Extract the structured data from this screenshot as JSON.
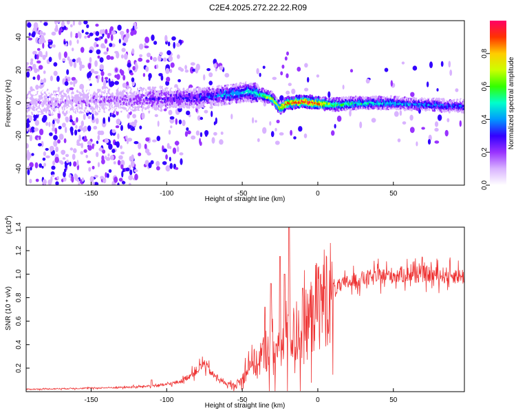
{
  "title": "C2E4.2025.272.22.22.R09",
  "chart_data": [
    {
      "type": "heatmap",
      "name": "spectrogram",
      "xlabel": "Height of straight line (km)",
      "ylabel": "Frequency (Hz)",
      "xlim": [
        -193,
        97
      ],
      "ylim": [
        -50,
        50
      ],
      "xticks": [
        -150,
        -100,
        -50,
        0,
        50
      ],
      "xtick_labels": [
        "-150",
        "-100",
        "-50",
        "0",
        "50"
      ],
      "yticks": [
        -40,
        -20,
        0,
        20,
        40
      ],
      "ytick_labels": [
        "-40",
        "-20",
        "0",
        "20",
        "40"
      ],
      "colorbar": {
        "label": "Normalized spectral amplitude",
        "range": [
          0,
          1
        ],
        "ticks": [
          0.0,
          0.2,
          0.4,
          0.6,
          0.8
        ],
        "tick_labels": [
          "0.0",
          "0.2",
          "0.4",
          "0.6",
          "0.8"
        ],
        "colors": [
          "#ffffff",
          "#d9b3ff",
          "#9933ff",
          "#3300ff",
          "#0099ff",
          "#00ffcc",
          "#33ff00",
          "#ccff00",
          "#ffcc00",
          "#ff3300",
          "#ff0066"
        ]
      },
      "ridge": {
        "x": [
          -193,
          -150,
          -120,
          -100,
          -80,
          -60,
          -45,
          -30,
          -25,
          -20,
          -10,
          0,
          10,
          30,
          50,
          70,
          97
        ],
        "freq": [
          0,
          1,
          2,
          3,
          3,
          5,
          7,
          3,
          -3,
          0,
          1,
          0,
          -1,
          0,
          0,
          -1,
          -2
        ],
        "amplitude": [
          0.1,
          0.12,
          0.18,
          0.25,
          0.3,
          0.4,
          0.45,
          0.7,
          0.75,
          0.9,
          0.95,
          0.9,
          0.6,
          0.5,
          0.45,
          0.4,
          0.35
        ]
      }
    },
    {
      "type": "line",
      "name": "snr",
      "color": "#ee3333",
      "xlabel": "Height of straight line (km)",
      "ylabel": "SNR (10 * v/v)",
      "scale_label": "(x10",
      "scale_exponent": "4",
      "scale_close": ")",
      "xlim": [
        -193,
        97
      ],
      "ylim": [
        0,
        14000
      ],
      "xticks": [
        -150,
        -100,
        -50,
        0,
        50
      ],
      "xtick_labels": [
        "-150",
        "-100",
        "-50",
        "0",
        "50"
      ],
      "yticks": [
        2000,
        4000,
        6000,
        8000,
        10000,
        12000,
        14000
      ],
      "ytick_labels": [
        "0.2",
        "0.4",
        "0.6",
        "0.8",
        "1.0",
        "1.2",
        "1.4"
      ],
      "envelope": {
        "x": [
          -193,
          -150,
          -120,
          -110,
          -100,
          -90,
          -80,
          -75,
          -70,
          -60,
          -55,
          -50,
          -45,
          -40,
          -35,
          -30,
          -25,
          -20,
          -15,
          -10,
          -5,
          0,
          5,
          10,
          20,
          30,
          40,
          50,
          60,
          70,
          80,
          90,
          97
        ],
        "y": [
          200,
          300,
          400,
          500,
          600,
          900,
          1800,
          2400,
          1500,
          600,
          500,
          1000,
          2800,
          2200,
          3500,
          4000,
          3200,
          5600,
          4600,
          5200,
          6200,
          7500,
          8200,
          8700,
          9300,
          9600,
          9800,
          9900,
          10000,
          10000,
          9900,
          9900,
          9800
        ]
      },
      "spikes": [
        {
          "x": -19,
          "y": 14000
        },
        {
          "x": -25,
          "y": 11500
        },
        {
          "x": -31,
          "y": 9200
        },
        {
          "x": -35,
          "y": 7200
        },
        {
          "x": -10,
          "y": 8800
        },
        {
          "x": -3,
          "y": 8200
        },
        {
          "x": -22,
          "y": 10000
        },
        {
          "x": -110,
          "y": 1000
        }
      ]
    }
  ]
}
